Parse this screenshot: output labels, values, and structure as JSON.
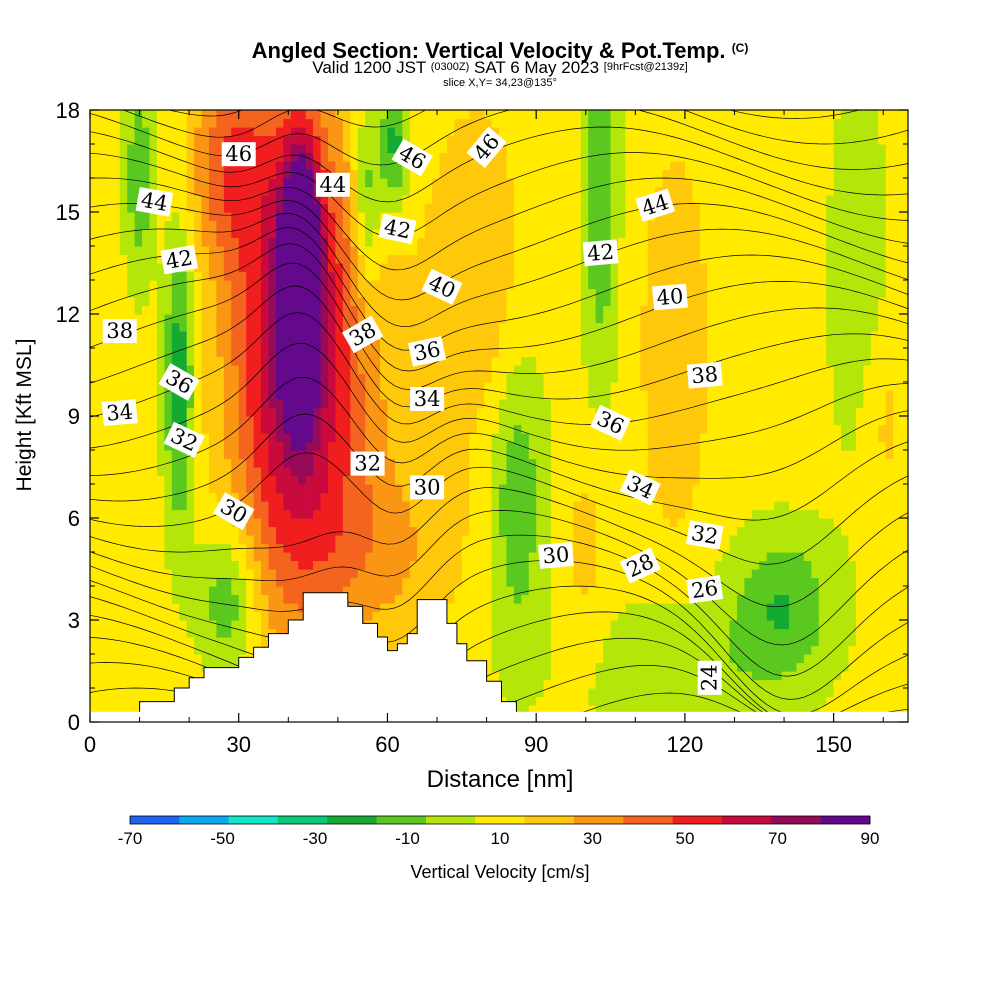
{
  "header": {
    "title": "Angled Section: Vertical Velocity & Pot.Temp.",
    "title_tag": "(C)",
    "valid_prefix": "Valid 1200 JST",
    "valid_utc": "(0300Z)",
    "valid_date": "SAT 6 May 2023",
    "forecast_tag": "[9hrFcst@2139z]",
    "slice": "slice X,Y= 34,23@135°"
  },
  "chart_data": {
    "type": "heatmap",
    "xlabel": "Distance [nm]",
    "ylabel": "Height [Kft MSL]",
    "xlim": [
      0,
      165
    ],
    "ylim": [
      0,
      18
    ],
    "x_ticks": [
      0,
      30,
      60,
      90,
      120,
      150
    ],
    "y_ticks": [
      0,
      3,
      6,
      9,
      12,
      15,
      18
    ],
    "colorbar": {
      "label": "Vertical Velocity [cm/s]",
      "tick_labels": [
        -70,
        -50,
        -30,
        -10,
        10,
        30,
        50,
        70,
        90
      ],
      "colors": [
        "#0a1ee6",
        "#1e64f0",
        "#0aaaf0",
        "#10e6c8",
        "#0ac878",
        "#14aa32",
        "#5ac81e",
        "#b4e60a",
        "#ffea00",
        "#ffc80a",
        "#fa9614",
        "#f5641e",
        "#f01e1e",
        "#c80a3c",
        "#960a5a",
        "#64088c"
      ]
    },
    "terrain_profile": {
      "x_nm": [
        0,
        10,
        10,
        17,
        17,
        20,
        20,
        23,
        23,
        30,
        30,
        33,
        33,
        36,
        36,
        40,
        40,
        43,
        43,
        52,
        52,
        55,
        55,
        58,
        58,
        60,
        60,
        62,
        62,
        64,
        64,
        66,
        66,
        72,
        72,
        74,
        74,
        76,
        76,
        80,
        80,
        83,
        83,
        86,
        86,
        90
      ],
      "z_kft": [
        0,
        0,
        0.6,
        0.6,
        1.0,
        1.0,
        1.3,
        1.3,
        1.6,
        1.6,
        1.9,
        1.9,
        2.2,
        2.2,
        2.6,
        2.6,
        3.0,
        3.0,
        3.8,
        3.8,
        3.4,
        3.4,
        2.9,
        2.9,
        2.5,
        2.5,
        2.1,
        2.1,
        2.3,
        2.3,
        2.6,
        2.6,
        3.6,
        3.6,
        2.9,
        2.9,
        2.3,
        2.3,
        1.8,
        1.8,
        1.2,
        1.2,
        0.6,
        0.6,
        0
      ]
    },
    "theta_contour_labels": [
      {
        "text": "46",
        "x": 30,
        "y": 16.7,
        "angle": 0
      },
      {
        "text": "44",
        "x": 49,
        "y": 15.8,
        "angle": 0
      },
      {
        "text": "46",
        "x": 65,
        "y": 16.6,
        "angle": 30
      },
      {
        "text": "46",
        "x": 80,
        "y": 16.9,
        "angle": -50
      },
      {
        "text": "44",
        "x": 13,
        "y": 15.3,
        "angle": 10
      },
      {
        "text": "42",
        "x": 62,
        "y": 14.5,
        "angle": 12
      },
      {
        "text": "44",
        "x": 114,
        "y": 15.2,
        "angle": -18
      },
      {
        "text": "42",
        "x": 18,
        "y": 13.6,
        "angle": -10
      },
      {
        "text": "42",
        "x": 103,
        "y": 13.8,
        "angle": -5
      },
      {
        "text": "40",
        "x": 71,
        "y": 12.8,
        "angle": 25
      },
      {
        "text": "40",
        "x": 117,
        "y": 12.5,
        "angle": -5
      },
      {
        "text": "38",
        "x": 6,
        "y": 11.5,
        "angle": 0
      },
      {
        "text": "38",
        "x": 55,
        "y": 11.4,
        "angle": -30
      },
      {
        "text": "36",
        "x": 68,
        "y": 10.9,
        "angle": -12
      },
      {
        "text": "38",
        "x": 124,
        "y": 10.2,
        "angle": -5
      },
      {
        "text": "36",
        "x": 18,
        "y": 10.0,
        "angle": 30
      },
      {
        "text": "34",
        "x": 6,
        "y": 9.1,
        "angle": -5
      },
      {
        "text": "34",
        "x": 68,
        "y": 9.5,
        "angle": 0
      },
      {
        "text": "36",
        "x": 105,
        "y": 8.8,
        "angle": 25
      },
      {
        "text": "32",
        "x": 19,
        "y": 8.3,
        "angle": 25
      },
      {
        "text": "32",
        "x": 56,
        "y": 7.6,
        "angle": 0
      },
      {
        "text": "30",
        "x": 68,
        "y": 6.9,
        "angle": 0
      },
      {
        "text": "34",
        "x": 111,
        "y": 6.9,
        "angle": 25
      },
      {
        "text": "30",
        "x": 29,
        "y": 6.2,
        "angle": 30
      },
      {
        "text": "32",
        "x": 124,
        "y": 5.5,
        "angle": 10
      },
      {
        "text": "30",
        "x": 94,
        "y": 4.9,
        "angle": -5
      },
      {
        "text": "28",
        "x": 111,
        "y": 4.6,
        "angle": -25
      },
      {
        "text": "26",
        "x": 124,
        "y": 3.9,
        "angle": -8
      },
      {
        "text": "24",
        "x": 125,
        "y": 1.3,
        "angle": -90
      }
    ]
  }
}
